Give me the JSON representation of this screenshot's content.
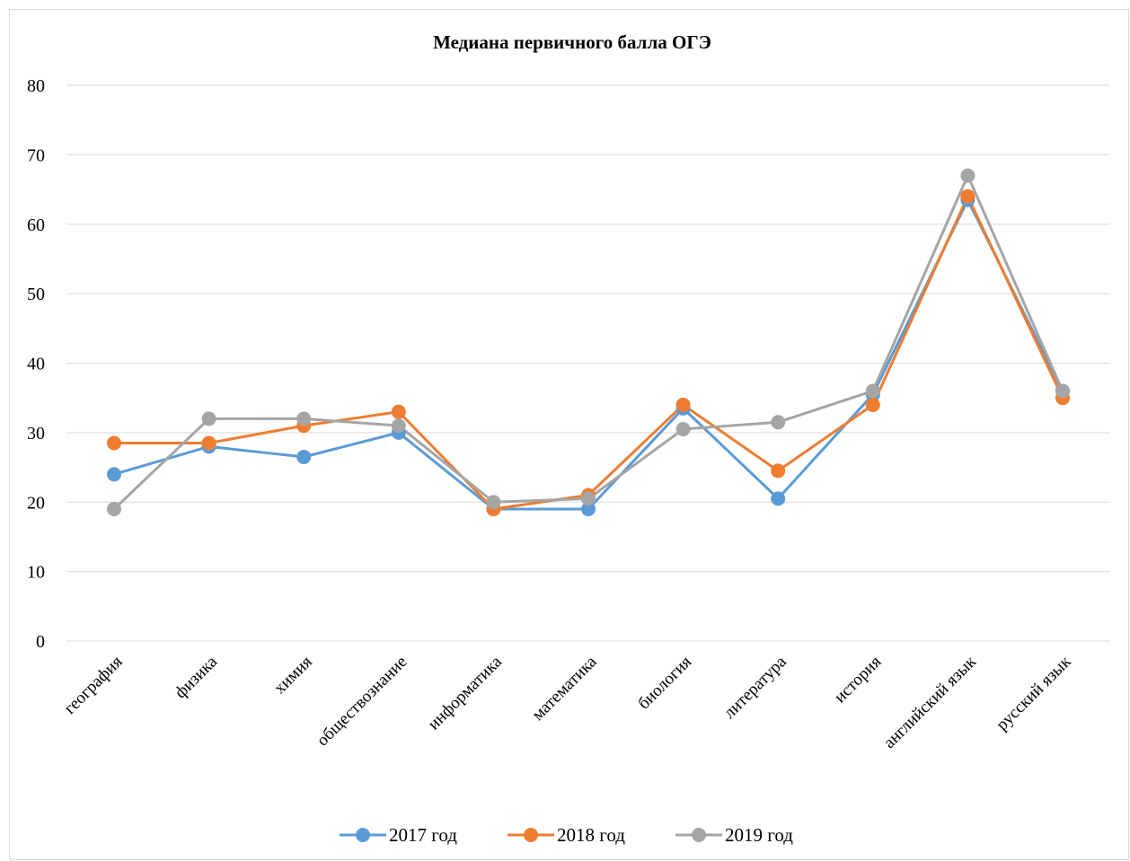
{
  "chart_data": {
    "type": "line",
    "title": "Медиана первичного балла ОГЭ",
    "categories": [
      "география",
      "физика",
      "химия",
      "обществознание",
      "информатика",
      "математика",
      "биология",
      "литература",
      "история",
      "английский язык",
      "русский язык"
    ],
    "series": [
      {
        "name": "2017 год",
        "color": "#5b9bd5",
        "values": [
          24,
          28,
          26.5,
          30,
          19,
          19,
          33.5,
          20.5,
          35.5,
          63.5,
          36
        ]
      },
      {
        "name": "2018 год",
        "color": "#ed7d31",
        "values": [
          28.5,
          28.5,
          31,
          33,
          19,
          21,
          34,
          24.5,
          34,
          64,
          35
        ]
      },
      {
        "name": "2019 год",
        "color": "#a5a5a5",
        "values": [
          19,
          32,
          32,
          31,
          20,
          20.5,
          30.5,
          31.5,
          36,
          67,
          36
        ]
      }
    ],
    "ylim": [
      0,
      80
    ],
    "yticks": [
      0,
      10,
      20,
      30,
      40,
      50,
      60,
      70,
      80
    ],
    "grid": true,
    "legend": "bottom"
  }
}
